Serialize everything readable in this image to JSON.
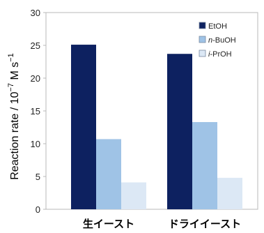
{
  "chart_data": {
    "type": "bar",
    "categories": [
      "生イースト",
      "ドライイースト"
    ],
    "series": [
      {
        "name": "EtOH",
        "name_prefix": "",
        "name_suffix": "EtOH",
        "color": "#0d2160",
        "values": [
          25.1,
          23.7
        ]
      },
      {
        "name": "n-BuOH",
        "name_prefix": "n",
        "name_suffix": "-BuOH",
        "color": "#9fc3e6",
        "values": [
          10.7,
          13.3
        ]
      },
      {
        "name": "i-PrOH",
        "name_prefix": "i",
        "name_suffix": "-PrOH",
        "color": "#dce8f5",
        "values": [
          4.1,
          4.8
        ]
      }
    ],
    "ylabel": "Reaction rate / 10-7 M s-1",
    "ylabel_parts": {
      "main": "Reaction rate / 10",
      "exp1": "−7",
      "mid": " M s",
      "exp2": "−1"
    },
    "ylim": [
      0,
      30
    ],
    "yticks": [
      "0",
      "5",
      "10",
      "15",
      "20",
      "25",
      "30"
    ],
    "grid": false,
    "legend_position": "top-right"
  }
}
